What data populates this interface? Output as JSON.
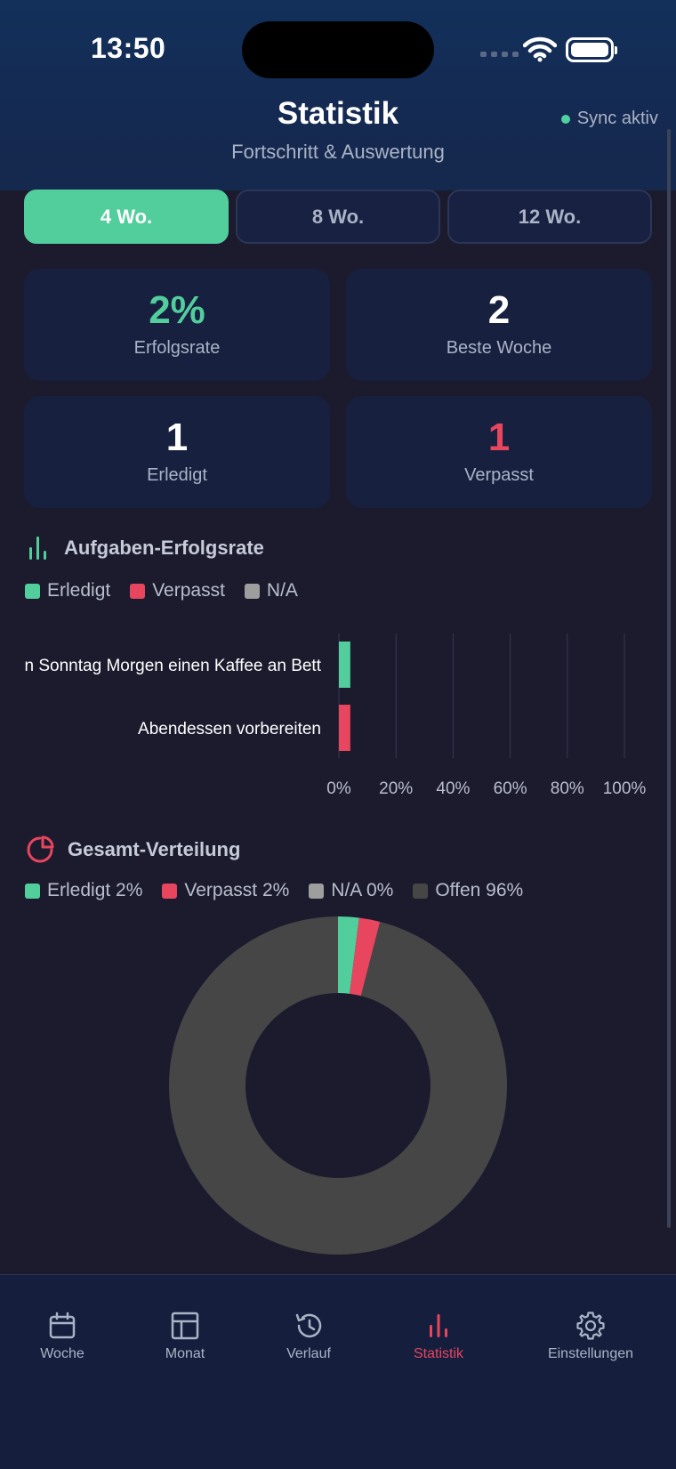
{
  "status_bar": {
    "time": "13:50"
  },
  "header": {
    "title": "Statistik",
    "subtitle": "Fortschritt & Auswertung",
    "sync_label": "Sync aktiv"
  },
  "periods": [
    {
      "label": "4 Wo.",
      "active": true
    },
    {
      "label": "8 Wo.",
      "active": false
    },
    {
      "label": "12 Wo.",
      "active": false
    }
  ],
  "stats": [
    {
      "value": "2%",
      "label": "Erfolgsrate"
    },
    {
      "value": "2",
      "label": "Beste Woche"
    },
    {
      "value": "1",
      "label": "Erledigt"
    },
    {
      "value": "1",
      "label": "Verpasst"
    }
  ],
  "colors": {
    "done": "#52cd9c",
    "missed": "#e8455f",
    "na": "#9e9e9e",
    "open": "#464646",
    "accent": "#e8455f"
  },
  "task_chart": {
    "title": "Aufgaben-Erfolgsrate",
    "icon": "bar-chart-icon",
    "legend": [
      "Erledigt",
      "Verpasst",
      "N/A"
    ]
  },
  "distribution": {
    "title": "Gesamt-Verteilung",
    "icon": "pie-chart-icon",
    "legend": [
      "Erledigt 2%",
      "Verpasst 2%",
      "N/A 0%",
      "Offen 96%"
    ]
  },
  "chart_data": [
    {
      "type": "bar",
      "orientation": "horizontal",
      "categories": [
        "n Sonntag Morgen einen Kaffee an Bett",
        "Abendessen vorbereiten"
      ],
      "series": [
        {
          "name": "Erledigt",
          "values": [
            4,
            0
          ]
        },
        {
          "name": "Verpasst",
          "values": [
            0,
            4
          ]
        },
        {
          "name": "N/A",
          "values": [
            0,
            0
          ]
        }
      ],
      "xticks": [
        "0%",
        "20%",
        "40%",
        "60%",
        "80%",
        "100%"
      ],
      "xlim": [
        0,
        100
      ],
      "grid": true
    },
    {
      "type": "pie",
      "labels": [
        "Erledigt",
        "Verpasst",
        "N/A",
        "Offen"
      ],
      "values": [
        2,
        2,
        0,
        96
      ],
      "donut": true
    }
  ],
  "tabs": [
    {
      "label": "Woche",
      "icon": "calendar-icon",
      "active": false
    },
    {
      "label": "Monat",
      "icon": "layout-icon",
      "active": false
    },
    {
      "label": "Verlauf",
      "icon": "history-icon",
      "active": false
    },
    {
      "label": "Statistik",
      "icon": "bar-chart-icon",
      "active": true
    },
    {
      "label": "Einstellungen",
      "icon": "gear-icon",
      "active": false
    }
  ]
}
